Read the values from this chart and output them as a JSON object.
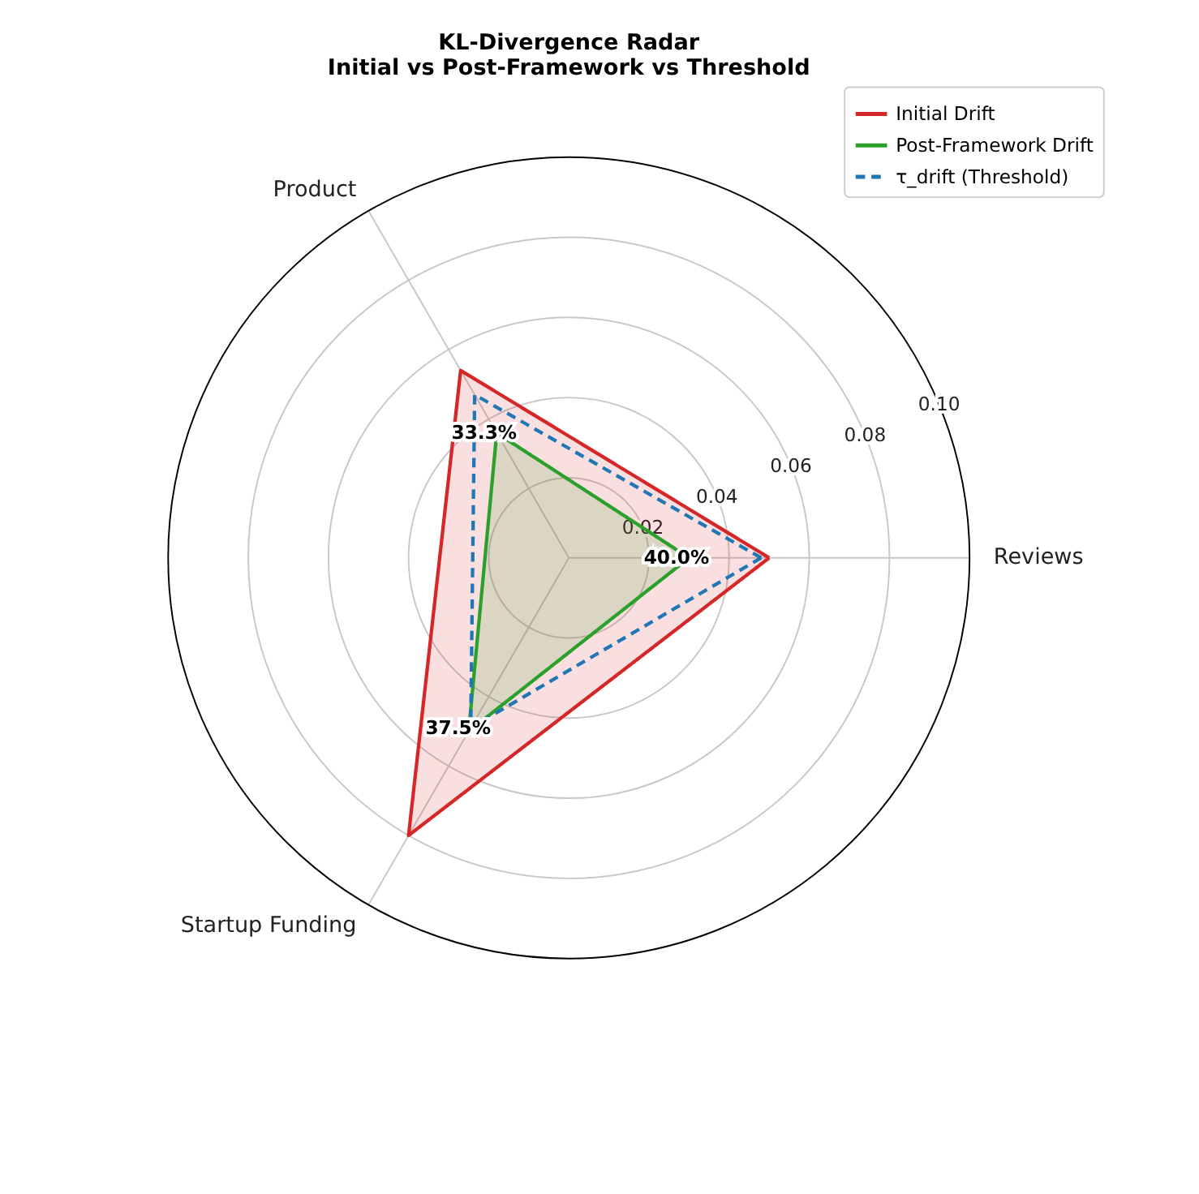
{
  "chart_data": {
    "type": "radar",
    "title": "KL-Divergence Radar\nInitial vs Post-Framework vs Threshold",
    "categories": [
      "Reviews",
      "Startup Funding",
      "Product"
    ],
    "series": [
      {
        "name": "Initial Drift",
        "color": "#d62728",
        "values": [
          0.05,
          0.08,
          0.054
        ]
      },
      {
        "name": "Post-Framework Drift",
        "color": "#2ca02c",
        "values": [
          0.03,
          0.05,
          0.036
        ]
      },
      {
        "name": "τ_drift (Threshold)",
        "line_style": "dashed",
        "color": "#1f77b4",
        "values": [
          0.048,
          0.049,
          0.047
        ]
      }
    ],
    "ylim": [
      0,
      0.1
    ],
    "yticks": [
      {
        "value": 0.02,
        "label": "0.02"
      },
      {
        "value": 0.04,
        "label": "0.04"
      },
      {
        "value": 0.06,
        "label": "0.06"
      },
      {
        "value": 0.08,
        "label": "0.08"
      },
      {
        "value": 0.1,
        "label": "0.10"
      }
    ],
    "grid": true,
    "legend": "top right",
    "annotations": [
      {
        "text": "40.0%",
        "x": "Reviews"
      },
      {
        "text": "37.5%",
        "x": "Startup Funding"
      },
      {
        "text": "33.3%",
        "x": "Product"
      }
    ]
  }
}
